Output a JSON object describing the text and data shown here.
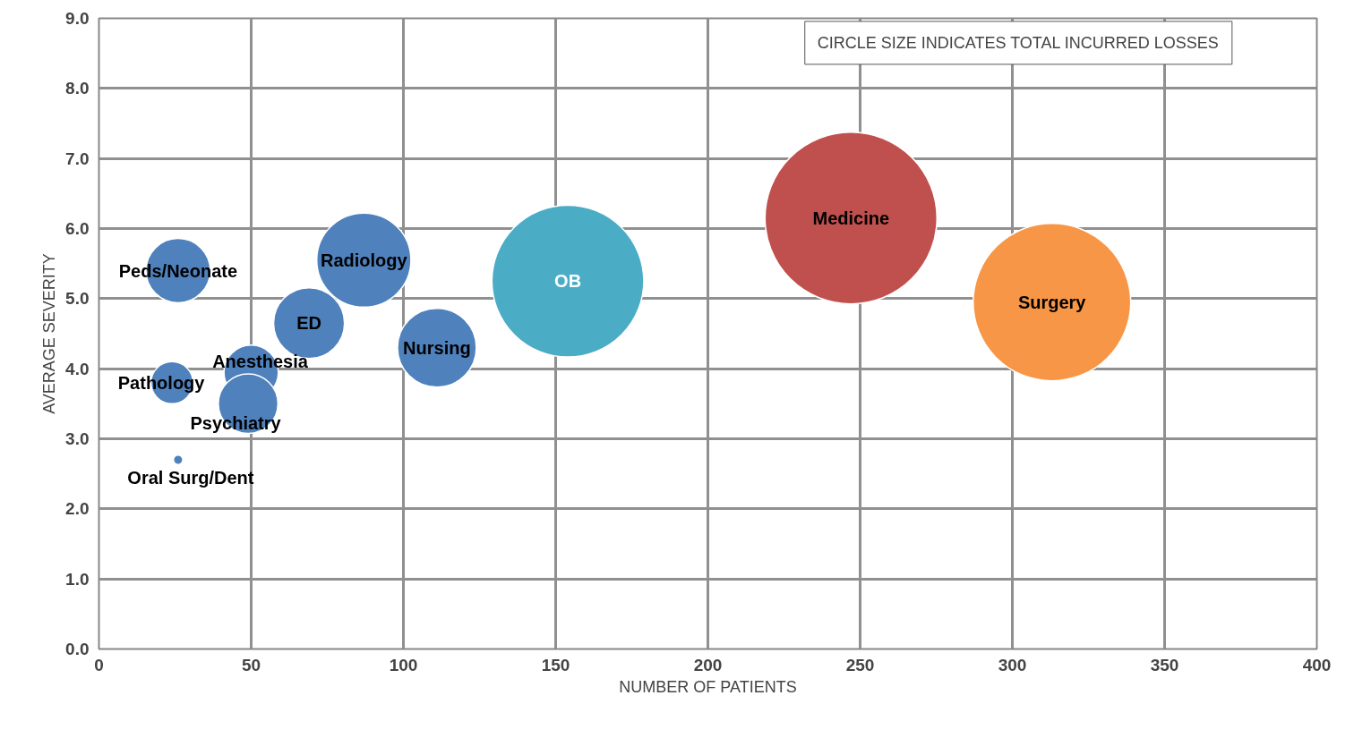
{
  "chart_data": {
    "type": "bubble",
    "xlabel": "NUMBER OF PATIENTS",
    "ylabel": "AVERAGE SEVERITY",
    "annotations": [
      "CIRCLE SIZE INDICATES TOTAL INCURRED LOSSES"
    ],
    "xlim": [
      0,
      400
    ],
    "xticks": [
      0,
      50,
      100,
      150,
      200,
      250,
      300,
      350,
      400
    ],
    "ylim": [
      0,
      9
    ],
    "yticks": [
      {
        "value": 0,
        "label": "0.0"
      },
      {
        "value": 1,
        "label": "1.0"
      },
      {
        "value": 2,
        "label": "2.0"
      },
      {
        "value": 3,
        "label": "3.0"
      },
      {
        "value": 4,
        "label": "4.0"
      },
      {
        "value": 5,
        "label": "5.0"
      },
      {
        "value": 6,
        "label": "6.0"
      },
      {
        "value": 7,
        "label": "7.0"
      },
      {
        "value": 8,
        "label": "8.0"
      },
      {
        "value": 9,
        "label": "9.0"
      }
    ],
    "grid": true,
    "legend": false,
    "series": [
      {
        "name": "Peds/Neonate",
        "color": "#4f81bd",
        "x": [
          26
        ],
        "values": [
          5.4
        ],
        "sizes": [
          0.14
        ]
      },
      {
        "name": "Pathology",
        "color": "#4f81bd",
        "x": [
          24
        ],
        "values": [
          3.8
        ],
        "sizes": [
          0.06
        ]
      },
      {
        "name": "Anesthesia",
        "color": "#4f81bd",
        "x": [
          50
        ],
        "values": [
          3.95
        ],
        "sizes": [
          0.1
        ]
      },
      {
        "name": "Psychiatry",
        "color": "#4f81bd",
        "x": [
          49
        ],
        "values": [
          3.5
        ],
        "sizes": [
          0.12
        ]
      },
      {
        "name": "Oral Surg/Dent",
        "color": "#4f81bd",
        "x": [
          26
        ],
        "values": [
          2.7
        ],
        "sizes": [
          0.003
        ]
      },
      {
        "name": "ED",
        "color": "#4f81bd",
        "x": [
          69
        ],
        "values": [
          4.65
        ],
        "sizes": [
          0.17
        ]
      },
      {
        "name": "Radiology",
        "color": "#4f81bd",
        "x": [
          87
        ],
        "values": [
          5.55
        ],
        "sizes": [
          0.3
        ]
      },
      {
        "name": "Nursing",
        "color": "#4f81bd",
        "x": [
          111
        ],
        "values": [
          4.3
        ],
        "sizes": [
          0.21
        ]
      },
      {
        "name": "OB",
        "color": "#4bacc6",
        "x": [
          154
        ],
        "values": [
          5.25
        ],
        "sizes": [
          0.78
        ]
      },
      {
        "name": "Medicine",
        "color": "#c0504d",
        "x": [
          247
        ],
        "values": [
          6.15
        ],
        "sizes": [
          1
        ]
      },
      {
        "name": "Surgery",
        "color": "#f79646",
        "x": [
          313
        ],
        "values": [
          4.95
        ],
        "sizes": [
          0.84
        ]
      }
    ]
  }
}
